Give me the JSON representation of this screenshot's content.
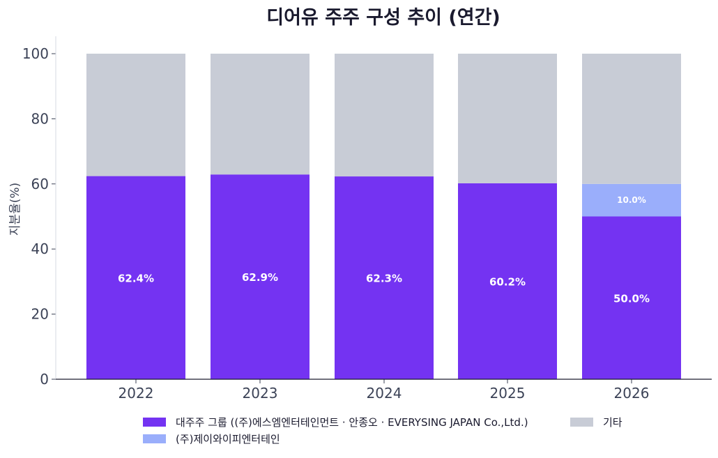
{
  "chart_data": {
    "type": "bar",
    "stacked": true,
    "title": "디어유 주주 구성 추이 (연간)",
    "xlabel": "",
    "ylabel": "지분율(%)",
    "ylim": [
      0,
      100
    ],
    "yticks": [
      "0",
      "20",
      "40",
      "60",
      "80",
      "100"
    ],
    "categories": [
      "2022",
      "2023",
      "2024",
      "2025",
      "2026"
    ],
    "series": [
      {
        "name": "대주주 그룹 ((주)에스엠엔터테인먼트 · 안종오 · EVERYSING JAPAN Co.,Ltd.)",
        "color": "#7433f2",
        "values": [
          62.4,
          62.9,
          62.3,
          60.2,
          50.0
        ],
        "labels": [
          "62.4%",
          "62.9%",
          "62.3%",
          "60.2%",
          "50.0%"
        ]
      },
      {
        "name": "(주)제이와이피엔터테인",
        "color": "#9aaefb",
        "values": [
          0,
          0,
          0,
          0,
          10.0
        ],
        "labels": [
          "",
          "",
          "",
          "",
          "10.0%"
        ]
      },
      {
        "name": "기타",
        "color": "#c8ccd6",
        "values": [
          37.6,
          37.1,
          37.7,
          39.8,
          40.0
        ],
        "labels": [
          "",
          "",
          "",
          "",
          ""
        ]
      }
    ],
    "grid": false,
    "legend_position": "bottom"
  }
}
